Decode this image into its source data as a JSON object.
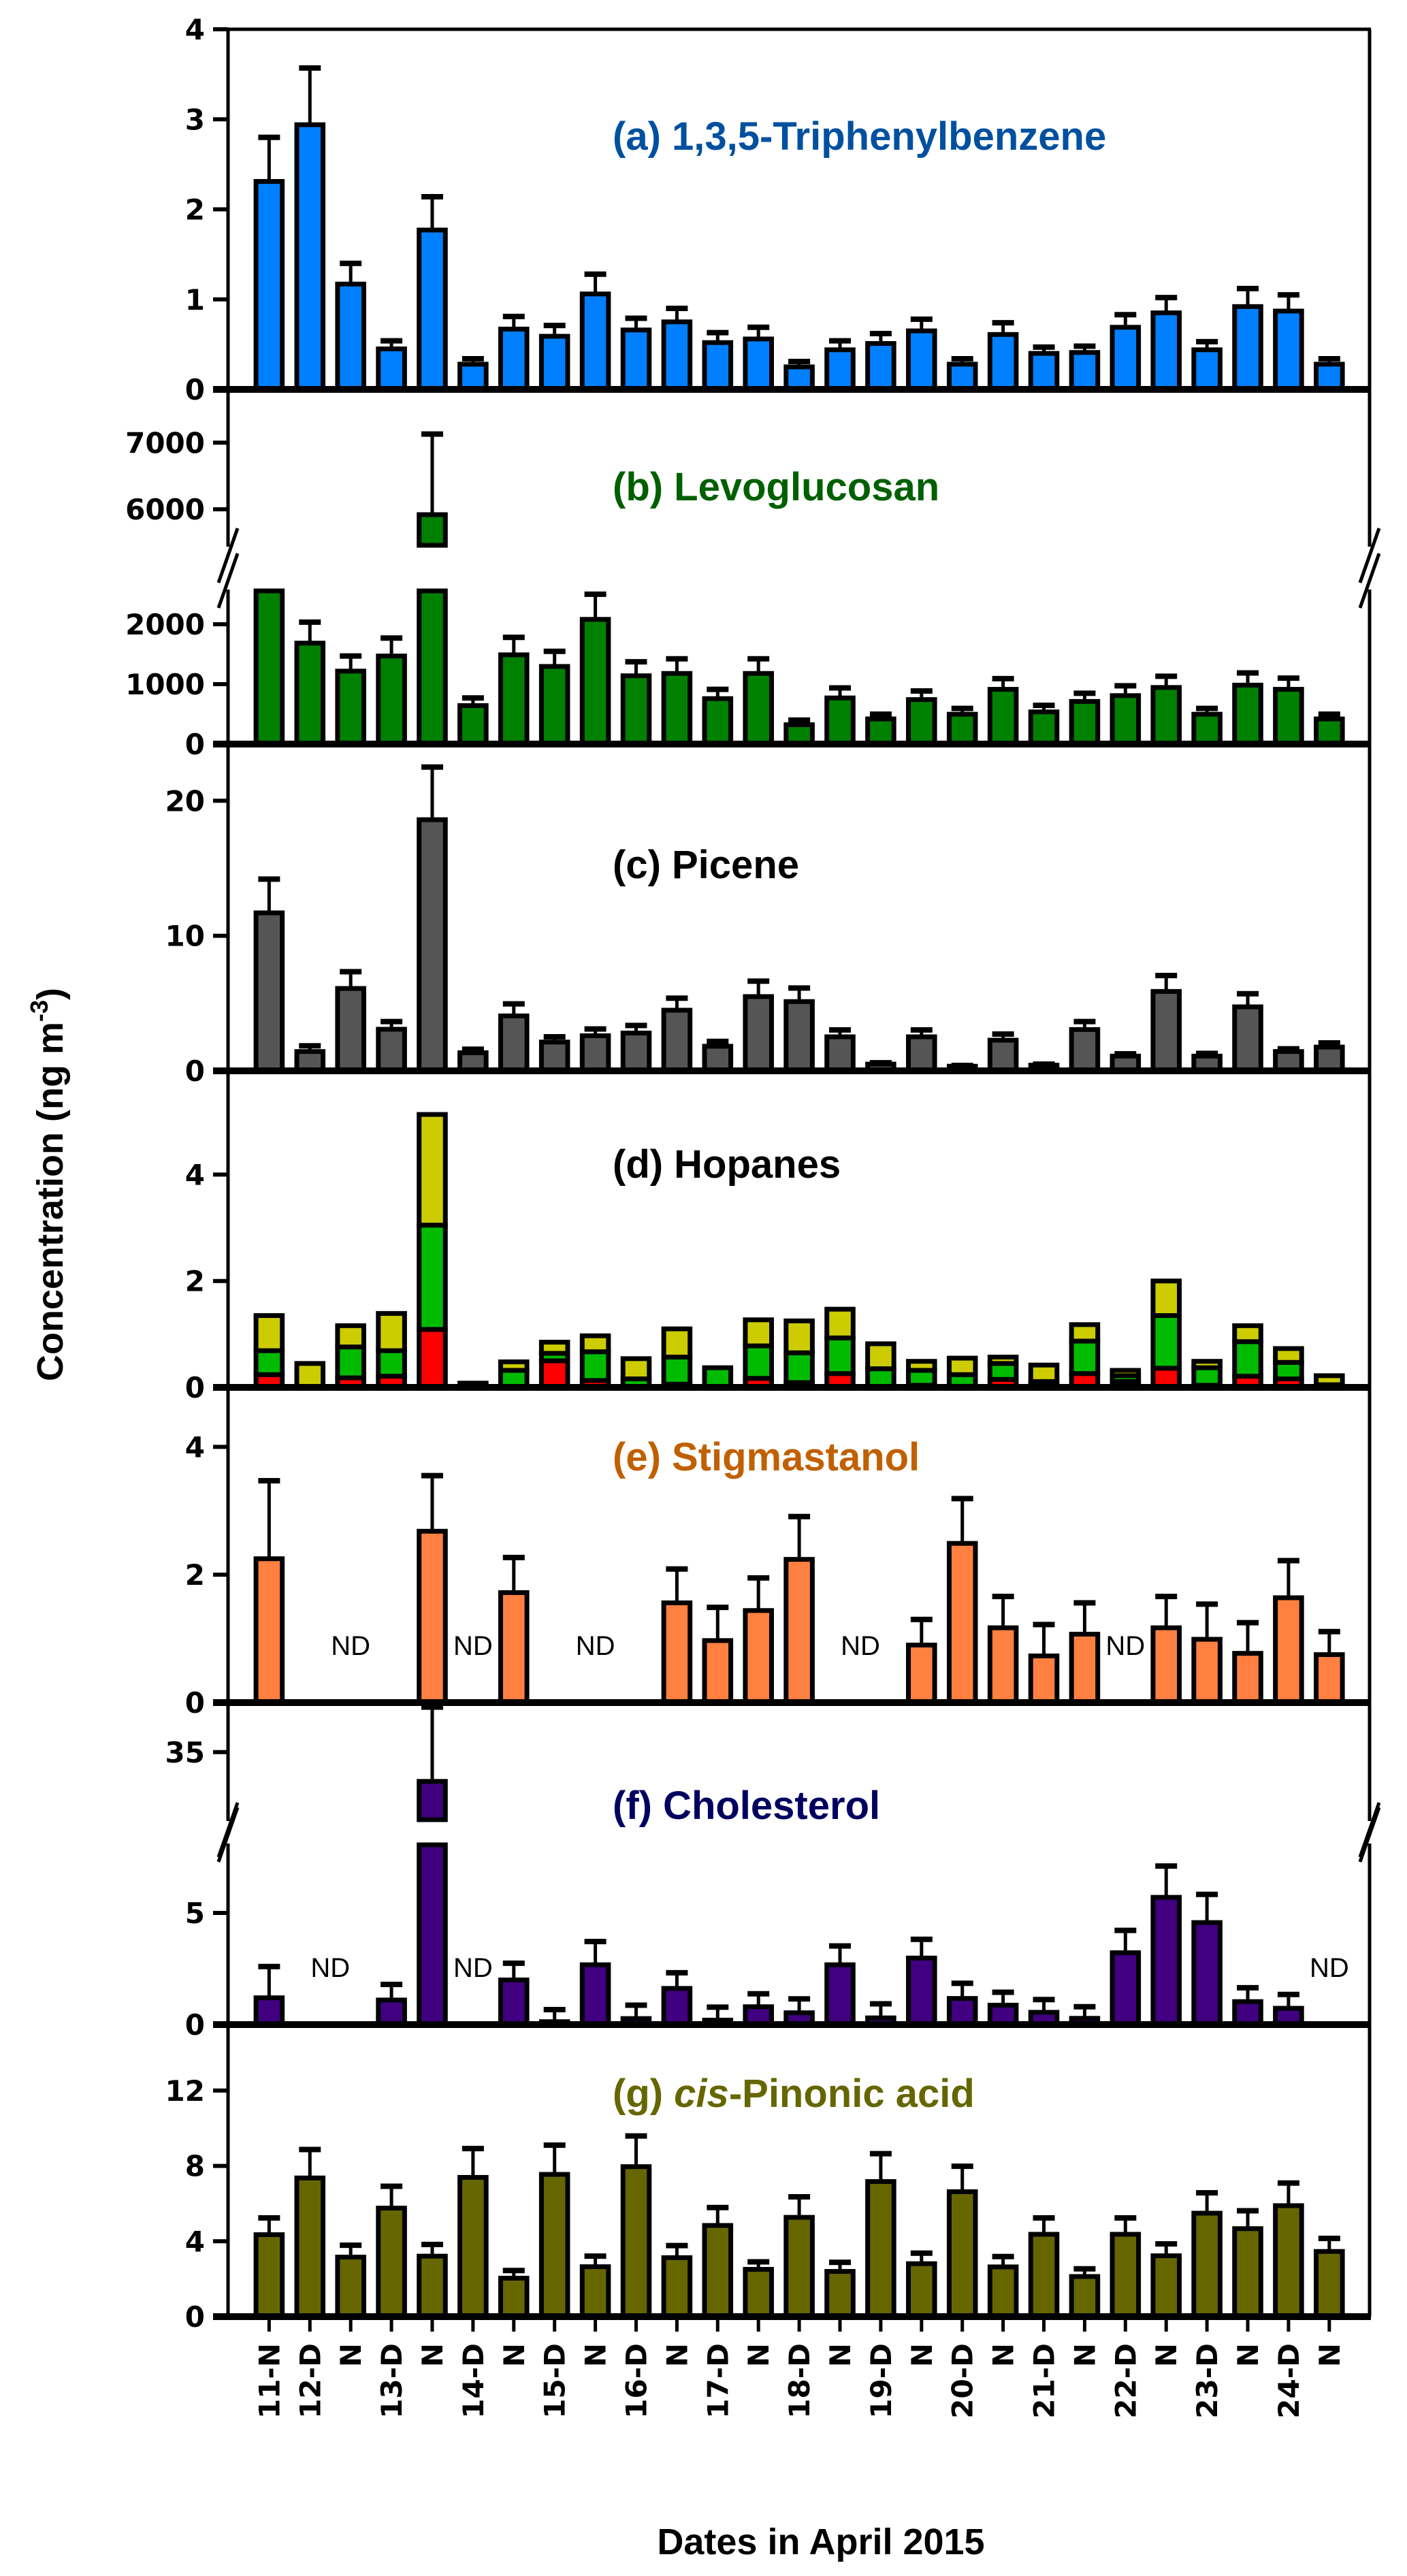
{
  "chart_data": {
    "type": "bar",
    "xlabel": "Dates in April 2015",
    "ylabel": {
      "main": "Concentration  (ng m",
      "sup": "-3",
      "close": ")"
    },
    "categories": [
      "11-N",
      "12-D",
      "N",
      "13-D",
      "N",
      "14-D",
      "N",
      "15-D",
      "N",
      "16-D",
      "N",
      "17-D",
      "N",
      "18-D",
      "N",
      "19-D",
      "N",
      "20-D",
      "N",
      "21-D",
      "N",
      "22-D",
      "N",
      "23-D",
      "N",
      "24-D",
      "N"
    ],
    "nd_text": "ND",
    "panels": [
      {
        "id": "a",
        "title": [
          {
            "text": "(a) 1,3,5-Triphenylbenzene"
          }
        ],
        "title_color": "#0050A0",
        "bar_color": "#0080FF",
        "ylim": [
          0,
          4
        ],
        "yticks": [
          "0",
          "1",
          "2",
          "3",
          "4"
        ],
        "values": [
          2.31,
          2.94,
          1.17,
          0.45,
          1.77,
          0.28,
          0.67,
          0.59,
          1.06,
          0.66,
          0.75,
          0.52,
          0.56,
          0.25,
          0.44,
          0.51,
          0.65,
          0.28,
          0.61,
          0.4,
          0.41,
          0.69,
          0.85,
          0.44,
          0.92,
          0.87,
          0.28
        ],
        "error_top": [
          2.8,
          3.57,
          1.4,
          0.54,
          2.14,
          0.34,
          0.81,
          0.71,
          1.28,
          0.79,
          0.9,
          0.63,
          0.69,
          0.31,
          0.54,
          0.62,
          0.78,
          0.34,
          0.74,
          0.47,
          0.48,
          0.83,
          1.02,
          0.53,
          1.12,
          1.05,
          0.34
        ]
      },
      {
        "id": "b",
        "title": [
          {
            "text": "(b) Levoglucosan"
          }
        ],
        "title_color": "#006000",
        "bar_color": "#008000",
        "axis_break": {
          "lower": [
            0,
            2557
          ],
          "upper": [
            5460,
            7800
          ]
        },
        "yticks": [
          "0",
          "1000",
          "2000",
          "6000",
          "7000"
        ],
        "values": [
          2600,
          1685,
          1218,
          1470,
          5920,
          642,
          1490,
          1296,
          2082,
          1140,
          1179,
          759,
          1179,
          323,
          770,
          420,
          743,
          498,
          914,
          537,
          712,
          809,
          945,
          498,
          984,
          914,
          420
        ],
        "error_top": [
          null,
          2035,
          1470,
          1770,
          7130,
          770,
          1782,
          1549,
          2502,
          1374,
          1424,
          914,
          1424,
          401,
          938,
          498,
          887,
          595,
          1093,
          646,
          848,
          973,
          1132,
          595,
          1187,
          1101,
          498
        ]
      },
      {
        "id": "c",
        "title": [
          {
            "text": "(c) Picene"
          }
        ],
        "title_color": "#000000",
        "bar_color": "#555555",
        "ylim": [
          0,
          24.2
        ],
        "yticks": [
          "0",
          "10",
          "20"
        ],
        "values": [
          11.7,
          1.43,
          6.1,
          3.08,
          18.6,
          1.34,
          4.07,
          2.13,
          2.6,
          2.8,
          4.49,
          1.82,
          5.5,
          5.13,
          2.52,
          0.5,
          2.52,
          0.34,
          2.27,
          0.42,
          3.06,
          1.09,
          5.88,
          1.09,
          4.74,
          1.43,
          1.76
        ],
        "error_top": [
          14.2,
          1.85,
          7.34,
          3.65,
          22.5,
          1.6,
          4.96,
          2.52,
          3.1,
          3.36,
          5.38,
          2.18,
          6.64,
          6.13,
          3.03,
          0.6,
          3.03,
          0.4,
          2.72,
          0.5,
          3.65,
          1.26,
          7.06,
          1.29,
          5.71,
          1.63,
          2.07
        ]
      },
      {
        "id": "d",
        "title": [
          {
            "text": "(d) Hopanes"
          }
        ],
        "title_color": "#000000",
        "ylim": [
          0,
          5.95
        ],
        "yticks": [
          "0",
          "2",
          "4"
        ],
        "stacked": true,
        "stack_colors": [
          "#FF0000",
          "#00BB00",
          "#CCCC00"
        ],
        "stack": [
          [
            0.24,
            0.45,
            0.66
          ],
          [
            0,
            0,
            0.45
          ],
          [
            0.18,
            0.58,
            0.4
          ],
          [
            0.21,
            0.48,
            0.7
          ],
          [
            1.09,
            1.96,
            2.08
          ],
          [
            0,
            0,
            0.08
          ],
          [
            0,
            0.32,
            0.16
          ],
          [
            0.5,
            0.14,
            0.21
          ],
          [
            0.13,
            0.54,
            0.3
          ],
          [
            0,
            0.16,
            0.38
          ],
          [
            0.06,
            0.51,
            0.53
          ],
          [
            0,
            0.37,
            0
          ],
          [
            0.17,
            0.61,
            0.49
          ],
          [
            0.09,
            0.56,
            0.6
          ],
          [
            0.26,
            0.67,
            0.54
          ],
          [
            0.02,
            0.33,
            0.47
          ],
          [
            0.04,
            0.28,
            0.17
          ],
          [
            0.02,
            0.22,
            0.31
          ],
          [
            0.15,
            0.3,
            0.12
          ],
          [
            0.03,
            0.08,
            0.31
          ],
          [
            0.26,
            0.61,
            0.31
          ],
          [
            0.11,
            0.11,
            0.1
          ],
          [
            0.36,
            0.99,
            0.65
          ],
          [
            0.04,
            0.33,
            0.12
          ],
          [
            0.21,
            0.65,
            0.3
          ],
          [
            0.16,
            0.31,
            0.26
          ],
          [
            0,
            0.05,
            0.17
          ]
        ]
      },
      {
        "id": "e",
        "title": [
          {
            "text": "(e) Stigmastanol"
          }
        ],
        "title_color": "#C06000",
        "bar_color": "#FF8040",
        "ylim": [
          0,
          4.93
        ],
        "yticks": [
          "0",
          "2",
          "4"
        ],
        "values": [
          2.25,
          null,
          null,
          null,
          2.68,
          null,
          1.72,
          null,
          null,
          null,
          1.56,
          0.97,
          1.44,
          2.24,
          null,
          null,
          0.9,
          2.49,
          1.17,
          0.73,
          1.07,
          null,
          1.17,
          0.99,
          0.77,
          1.64,
          0.75
        ],
        "error_top": [
          3.47,
          null,
          null,
          null,
          3.55,
          null,
          2.27,
          null,
          null,
          null,
          2.09,
          1.49,
          1.95,
          2.91,
          null,
          null,
          1.3,
          3.19,
          1.66,
          1.22,
          1.56,
          null,
          1.66,
          1.54,
          1.25,
          2.22,
          1.11
        ]
      },
      {
        "id": "f",
        "title": [
          {
            "text": "(f) Cholesterol"
          }
        ],
        "title_color": "#000060",
        "bar_color": "#400080",
        "axis_break": {
          "lower": [
            0,
            8.05
          ],
          "upper": [
            32,
            37.2
          ]
        },
        "yticks": [
          "0",
          "5",
          "35"
        ],
        "values": [
          1.2,
          null,
          null,
          1.1,
          33.7,
          null,
          2.0,
          0.13,
          2.68,
          0.27,
          1.62,
          0.2,
          0.8,
          0.53,
          2.68,
          0.3,
          2.98,
          1.17,
          0.87,
          0.55,
          0.28,
          3.22,
          5.7,
          4.57,
          1.03,
          0.73,
          null
        ],
        "error_top": [
          2.6,
          null,
          null,
          1.8,
          37.0,
          null,
          2.75,
          0.67,
          3.72,
          0.87,
          2.32,
          0.78,
          1.38,
          1.15,
          3.52,
          0.93,
          3.82,
          1.85,
          1.45,
          1.12,
          0.8,
          4.22,
          7.1,
          5.83,
          1.65,
          1.35,
          null
        ]
      },
      {
        "id": "g",
        "title": [
          {
            "text": "(g) "
          },
          {
            "text": "cis",
            "italic": true
          },
          {
            "text": "-Pinonic acid"
          }
        ],
        "title_color": "#666600",
        "bar_color": "#666600",
        "ylim": [
          0,
          15.5
        ],
        "yticks": [
          "0",
          "4",
          "8",
          "12"
        ],
        "values": [
          4.35,
          7.36,
          3.16,
          5.76,
          3.21,
          7.39,
          2.04,
          7.55,
          2.65,
          7.96,
          3.13,
          4.84,
          2.51,
          5.27,
          2.4,
          7.17,
          2.81,
          6.63,
          2.64,
          4.37,
          2.13,
          4.37,
          3.23,
          5.49,
          4.67,
          5.89,
          3.46
        ],
        "error_top": [
          5.24,
          8.87,
          3.79,
          6.92,
          3.83,
          8.92,
          2.45,
          9.1,
          3.21,
          9.59,
          3.77,
          5.79,
          2.91,
          6.36,
          2.88,
          8.65,
          3.37,
          7.98,
          3.19,
          5.24,
          2.54,
          5.24,
          3.86,
          6.57,
          5.62,
          7.09,
          4.15
        ]
      }
    ]
  }
}
